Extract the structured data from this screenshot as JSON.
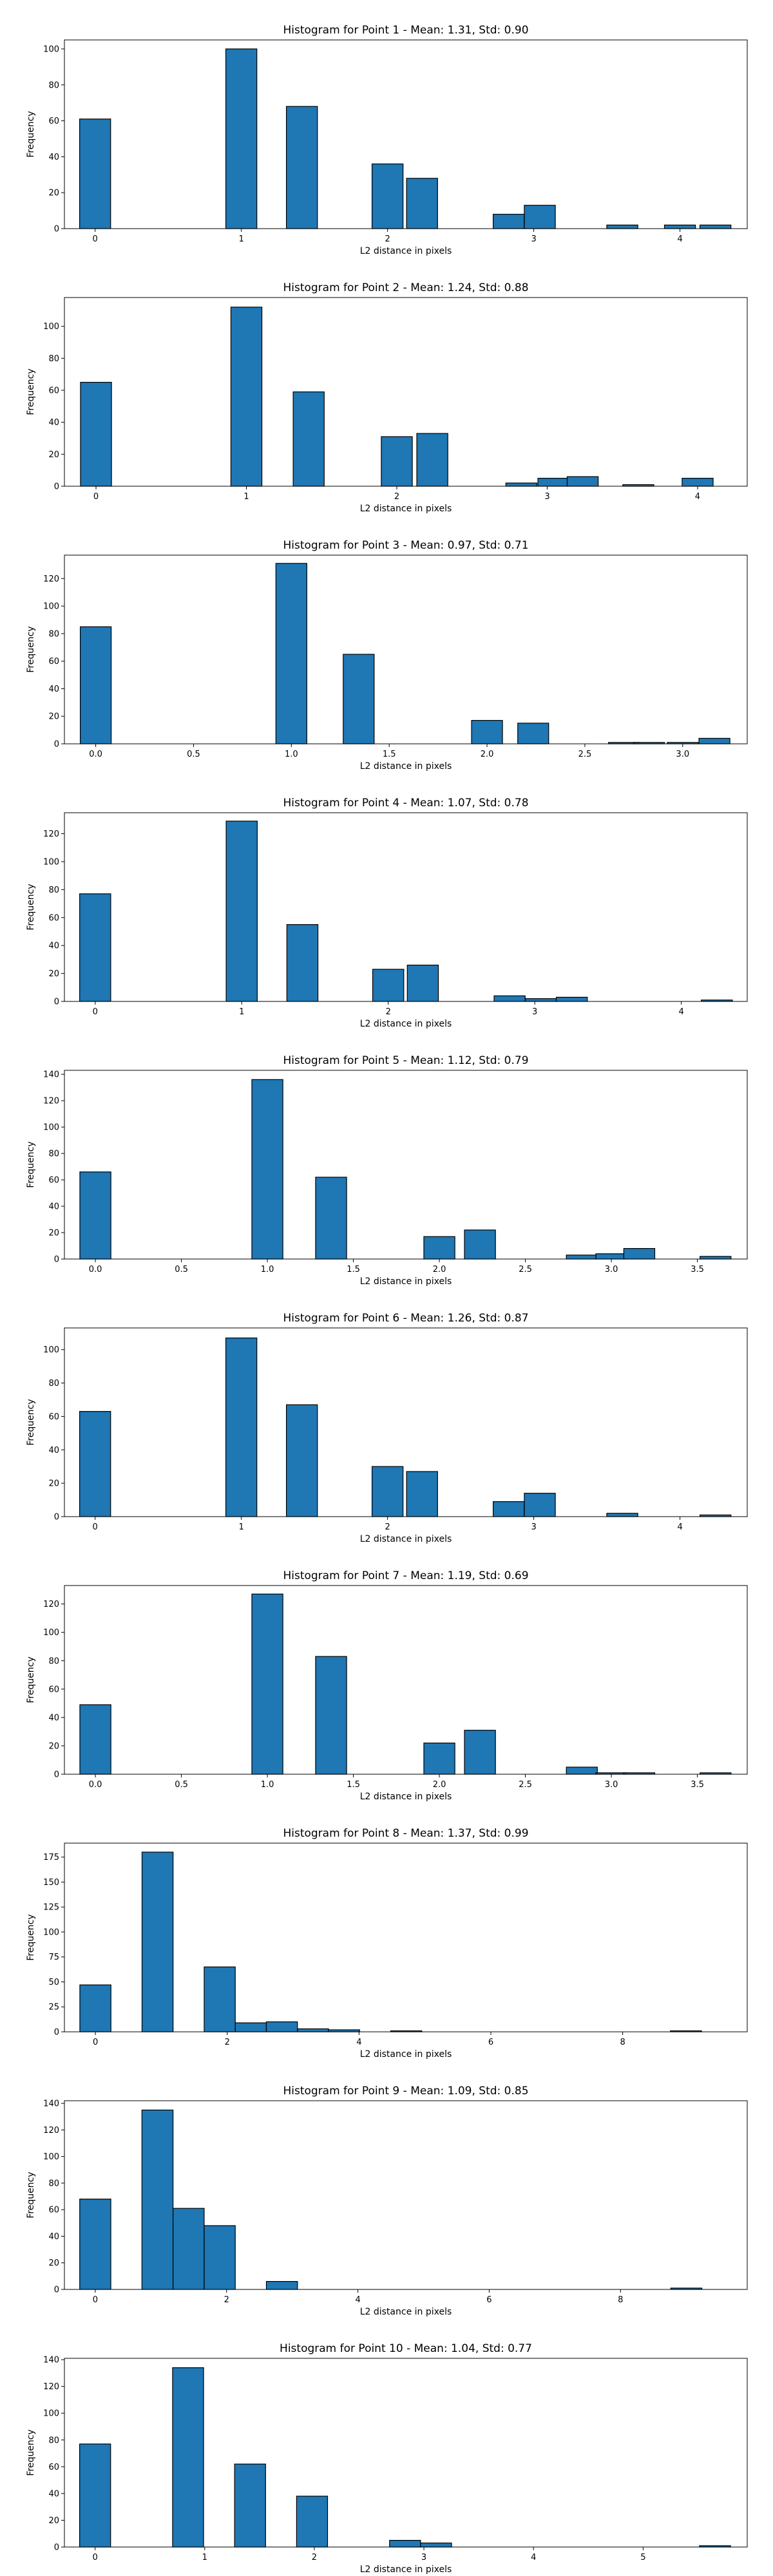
{
  "bar_color": "#1f77b4",
  "bar_edge_color": "#000000",
  "chart_data": [
    {
      "type": "bar",
      "title": "Histogram for Point 1 - Mean: 1.31, Std: 0.90",
      "xlabel": "L2 distance in pixels",
      "ylabel": "Frequency",
      "xlim": [
        -0.21,
        4.46
      ],
      "ylim": [
        0,
        105
      ],
      "xticks": [
        0,
        1,
        2,
        3,
        4
      ],
      "xtick_labels": [
        "0",
        "1",
        "2",
        "3",
        "4"
      ],
      "yticks": [
        0,
        20,
        40,
        60,
        80,
        100
      ],
      "ytick_labels": [
        "0",
        "20",
        "40",
        "60",
        "80",
        "100"
      ],
      "bin_width": 0.2121,
      "bins": [
        {
          "x": 0.0,
          "value": 61
        },
        {
          "x": 1.0,
          "value": 100
        },
        {
          "x": 1.4142,
          "value": 68
        },
        {
          "x": 2.0,
          "value": 36
        },
        {
          "x": 2.2361,
          "value": 28
        },
        {
          "x": 2.8284,
          "value": 8
        },
        {
          "x": 3.0414,
          "value": 13
        },
        {
          "x": 3.6056,
          "value": 2
        },
        {
          "x": 4.0,
          "value": 2
        },
        {
          "x": 4.2426,
          "value": 2
        }
      ]
    },
    {
      "type": "bar",
      "title": "Histogram for Point 2 - Mean: 1.24, Std: 0.88",
      "xlabel": "L2 distance in pixels",
      "ylabel": "Frequency",
      "xlim": [
        -0.21,
        4.33
      ],
      "ylim": [
        0,
        118
      ],
      "xticks": [
        0,
        1,
        2,
        3,
        4
      ],
      "xtick_labels": [
        "0",
        "1",
        "2",
        "3",
        "4"
      ],
      "yticks": [
        0,
        20,
        40,
        60,
        80,
        100
      ],
      "ytick_labels": [
        "0",
        "20",
        "40",
        "60",
        "80",
        "100"
      ],
      "bin_width": 0.2062,
      "bins": [
        {
          "x": 0.0,
          "value": 65
        },
        {
          "x": 1.0,
          "value": 112
        },
        {
          "x": 1.4142,
          "value": 59
        },
        {
          "x": 2.0,
          "value": 31
        },
        {
          "x": 2.2361,
          "value": 33
        },
        {
          "x": 2.8284,
          "value": 2
        },
        {
          "x": 3.0414,
          "value": 5
        },
        {
          "x": 3.236,
          "value": 6
        },
        {
          "x": 3.6056,
          "value": 1
        },
        {
          "x": 4.0,
          "value": 5
        }
      ]
    },
    {
      "type": "bar",
      "title": "Histogram for Point 3 - Mean: 0.97, Std: 0.71",
      "xlabel": "L2 distance in pixels",
      "ylabel": "Frequency",
      "xlim": [
        -0.16,
        3.33
      ],
      "ylim": [
        0,
        137
      ],
      "xticks": [
        0,
        0.5,
        1,
        1.5,
        2,
        2.5,
        3
      ],
      "xtick_labels": [
        "0.0",
        "0.5",
        "1.0",
        "1.5",
        "2.0",
        "2.5",
        "3.0"
      ],
      "yticks": [
        0,
        20,
        40,
        60,
        80,
        100,
        120
      ],
      "ytick_labels": [
        "0",
        "20",
        "40",
        "60",
        "80",
        "100",
        "120"
      ],
      "bin_width": 0.1581,
      "bins": [
        {
          "x": 0.0,
          "value": 85
        },
        {
          "x": 1.0,
          "value": 131
        },
        {
          "x": 1.3441,
          "value": 65
        },
        {
          "x": 2.0,
          "value": 17
        },
        {
          "x": 2.2361,
          "value": 15
        },
        {
          "x": 2.7,
          "value": 1
        },
        {
          "x": 2.8284,
          "value": 1
        },
        {
          "x": 3.0,
          "value": 1
        },
        {
          "x": 3.1623,
          "value": 4
        }
      ]
    },
    {
      "type": "bar",
      "title": "Histogram for Point 4 - Mean: 1.07, Std: 0.78",
      "xlabel": "L2 distance in pixels",
      "ylabel": "Frequency",
      "xlim": [
        -0.21,
        4.45
      ],
      "ylim": [
        0,
        135
      ],
      "xticks": [
        0,
        1,
        2,
        3,
        4
      ],
      "xtick_labels": [
        "0",
        "1",
        "2",
        "3",
        "4"
      ],
      "yticks": [
        0,
        20,
        40,
        60,
        80,
        100,
        120
      ],
      "ytick_labels": [
        "0",
        "20",
        "40",
        "60",
        "80",
        "100",
        "120"
      ],
      "bin_width": 0.2121,
      "bins": [
        {
          "x": 0.0,
          "value": 77
        },
        {
          "x": 1.0,
          "value": 129
        },
        {
          "x": 1.4142,
          "value": 55
        },
        {
          "x": 2.0,
          "value": 23
        },
        {
          "x": 2.2361,
          "value": 26
        },
        {
          "x": 2.8284,
          "value": 4
        },
        {
          "x": 3.0414,
          "value": 2
        },
        {
          "x": 3.2527,
          "value": 3
        },
        {
          "x": 4.2426,
          "value": 1
        }
      ]
    },
    {
      "type": "bar",
      "title": "Histogram for Point 5 - Mean: 1.12, Std: 0.79",
      "xlabel": "L2 distance in pixels",
      "ylabel": "Frequency",
      "xlim": [
        -0.18,
        3.79
      ],
      "ylim": [
        0,
        143
      ],
      "xticks": [
        0,
        0.5,
        1,
        1.5,
        2,
        2.5,
        3,
        3.5
      ],
      "xtick_labels": [
        "0.0",
        "0.5",
        "1.0",
        "1.5",
        "2.0",
        "2.5",
        "3.0",
        "3.5"
      ],
      "yticks": [
        0,
        20,
        40,
        60,
        80,
        100,
        120,
        140
      ],
      "ytick_labels": [
        "0",
        "20",
        "40",
        "60",
        "80",
        "100",
        "120",
        "140"
      ],
      "bin_width": 0.1803,
      "bins": [
        {
          "x": 0.0,
          "value": 66
        },
        {
          "x": 1.0,
          "value": 136
        },
        {
          "x": 1.3706,
          "value": 62
        },
        {
          "x": 2.0,
          "value": 17
        },
        {
          "x": 2.2361,
          "value": 22
        },
        {
          "x": 2.8284,
          "value": 3
        },
        {
          "x": 3.0,
          "value": 4
        },
        {
          "x": 3.1623,
          "value": 8
        },
        {
          "x": 3.6056,
          "value": 2
        }
      ]
    },
    {
      "type": "bar",
      "title": "Histogram for Point 6 - Mean: 1.26, Std: 0.87",
      "xlabel": "L2 distance in pixels",
      "ylabel": "Frequency",
      "xlim": [
        -0.21,
        4.46
      ],
      "ylim": [
        0,
        113
      ],
      "xticks": [
        0,
        1,
        2,
        3,
        4
      ],
      "xtick_labels": [
        "0",
        "1",
        "2",
        "3",
        "4"
      ],
      "yticks": [
        0,
        20,
        40,
        60,
        80,
        100
      ],
      "ytick_labels": [
        "0",
        "20",
        "40",
        "60",
        "80",
        "100"
      ],
      "bin_width": 0.2121,
      "bins": [
        {
          "x": 0.0,
          "value": 63
        },
        {
          "x": 1.0,
          "value": 107
        },
        {
          "x": 1.4142,
          "value": 67
        },
        {
          "x": 2.0,
          "value": 30
        },
        {
          "x": 2.2361,
          "value": 27
        },
        {
          "x": 2.8284,
          "value": 9
        },
        {
          "x": 3.0414,
          "value": 14
        },
        {
          "x": 3.6056,
          "value": 2
        },
        {
          "x": 4.2426,
          "value": 1
        }
      ]
    },
    {
      "type": "bar",
      "title": "Histogram for Point 7 - Mean: 1.19, Std: 0.69",
      "xlabel": "L2 distance in pixels",
      "ylabel": "Frequency",
      "xlim": [
        -0.18,
        3.79
      ],
      "ylim": [
        0,
        133
      ],
      "xticks": [
        0,
        0.5,
        1,
        1.5,
        2,
        2.5,
        3,
        3.5
      ],
      "xtick_labels": [
        "0.0",
        "0.5",
        "1.0",
        "1.5",
        "2.0",
        "2.5",
        "3.0",
        "3.5"
      ],
      "yticks": [
        0,
        20,
        40,
        60,
        80,
        100,
        120
      ],
      "ytick_labels": [
        "0",
        "20",
        "40",
        "60",
        "80",
        "100",
        "120"
      ],
      "bin_width": 0.1803,
      "bins": [
        {
          "x": 0.0,
          "value": 49
        },
        {
          "x": 1.0,
          "value": 127
        },
        {
          "x": 1.3706,
          "value": 83
        },
        {
          "x": 2.0,
          "value": 22
        },
        {
          "x": 2.2361,
          "value": 31
        },
        {
          "x": 2.8284,
          "value": 5
        },
        {
          "x": 3.0,
          "value": 1
        },
        {
          "x": 3.1623,
          "value": 1
        },
        {
          "x": 3.6056,
          "value": 1
        }
      ]
    },
    {
      "type": "bar",
      "title": "Histogram for Point 8 - Mean: 1.37, Std: 0.99",
      "xlabel": "L2 distance in pixels",
      "ylabel": "Frequency",
      "xlim": [
        -0.47,
        9.89
      ],
      "ylim": [
        0,
        189
      ],
      "xticks": [
        0,
        2,
        4,
        6,
        8
      ],
      "xtick_labels": [
        "0",
        "2",
        "4",
        "6",
        "8"
      ],
      "yticks": [
        0,
        25,
        50,
        75,
        100,
        125,
        150,
        175
      ],
      "ytick_labels": [
        "0",
        "25",
        "50",
        "75",
        "100",
        "125",
        "150",
        "175"
      ],
      "bin_width": 0.4716,
      "bins": [
        {
          "x": 0.0,
          "value": 47
        },
        {
          "x": 0.9432,
          "value": 180
        },
        {
          "x": 1.8864,
          "value": 65
        },
        {
          "x": 2.358,
          "value": 9
        },
        {
          "x": 2.8296,
          "value": 10
        },
        {
          "x": 3.3012,
          "value": 3
        },
        {
          "x": 3.7728,
          "value": 2
        },
        {
          "x": 4.716,
          "value": 1
        },
        {
          "x": 8.9604,
          "value": 1
        }
      ]
    },
    {
      "type": "bar",
      "title": "Histogram for Point 9 - Mean: 1.09, Std: 0.85",
      "xlabel": "L2 distance in pixels",
      "ylabel": "Frequency",
      "xlim": [
        -0.47,
        9.93
      ],
      "ylim": [
        0,
        142
      ],
      "xticks": [
        0,
        2,
        4,
        6,
        8
      ],
      "xtick_labels": [
        "0",
        "2",
        "4",
        "6",
        "8"
      ],
      "yticks": [
        0,
        20,
        40,
        60,
        80,
        100,
        120,
        140
      ],
      "ytick_labels": [
        "0",
        "20",
        "40",
        "60",
        "80",
        "100",
        "120",
        "140"
      ],
      "bin_width": 0.4738,
      "bins": [
        {
          "x": 0.0,
          "value": 68
        },
        {
          "x": 0.9476,
          "value": 135
        },
        {
          "x": 1.4214,
          "value": 61
        },
        {
          "x": 1.8952,
          "value": 48
        },
        {
          "x": 2.8428,
          "value": 6
        },
        {
          "x": 9.0022,
          "value": 1
        }
      ]
    },
    {
      "type": "bar",
      "title": "Histogram for Point 10 - Mean: 1.04, Std: 0.77",
      "xlabel": "L2 distance in pixels",
      "ylabel": "Frequency",
      "xlim": [
        -0.28,
        5.95
      ],
      "ylim": [
        0,
        141
      ],
      "xticks": [
        0,
        1,
        2,
        3,
        4,
        5
      ],
      "xtick_labels": [
        "0",
        "1",
        "2",
        "3",
        "4",
        "5"
      ],
      "yticks": [
        0,
        20,
        40,
        60,
        80,
        100,
        120,
        140
      ],
      "ytick_labels": [
        "0",
        "20",
        "40",
        "60",
        "80",
        "100",
        "120",
        "140"
      ],
      "bin_width": 0.2828,
      "bins": [
        {
          "x": 0.0,
          "value": 77
        },
        {
          "x": 0.8484,
          "value": 134
        },
        {
          "x": 1.414,
          "value": 62
        },
        {
          "x": 1.9796,
          "value": 38
        },
        {
          "x": 2.828,
          "value": 5
        },
        {
          "x": 3.1108,
          "value": 3
        },
        {
          "x": 5.656,
          "value": 1
        }
      ]
    }
  ]
}
